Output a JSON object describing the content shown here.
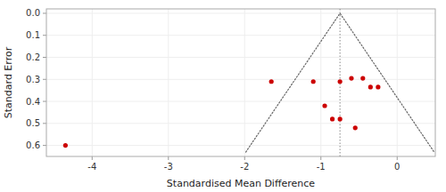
{
  "chart_data": {
    "type": "scatter",
    "xlabel": "Standardised Mean Difference",
    "ylabel": "Standard Error",
    "xlim": [
      -4.6,
      0.5
    ],
    "ylim": [
      0.65,
      -0.02
    ],
    "xticks": [
      -4,
      -3,
      -2,
      -1,
      0
    ],
    "yticks": [
      {
        "value": 0,
        "label": "0.0"
      },
      0.1,
      0.2,
      0.3,
      0.4,
      0.5,
      0.6
    ],
    "series": [
      {
        "type": "scatter",
        "color": "#cc0000",
        "marker": "circle",
        "x": [
          -4.35,
          -1.65,
          -1.1,
          -0.95,
          -0.85,
          -0.75,
          -0.75,
          -0.6,
          -0.55,
          -0.45,
          -0.35,
          -0.25
        ],
        "values": [
          0.6,
          0.31,
          0.31,
          0.42,
          0.48,
          0.48,
          0.31,
          0.295,
          0.52,
          0.295,
          0.335,
          0.335
        ]
      },
      {
        "type": "line",
        "color": "#666666",
        "line_style": "dotted",
        "x": [
          -1.9848,
          -0.75,
          0.4848
        ],
        "values": [
          0.63,
          0.0,
          0.63
        ]
      }
    ],
    "vline": {
      "x": -0.75,
      "color": "#888888",
      "line_style": "dotted"
    }
  }
}
